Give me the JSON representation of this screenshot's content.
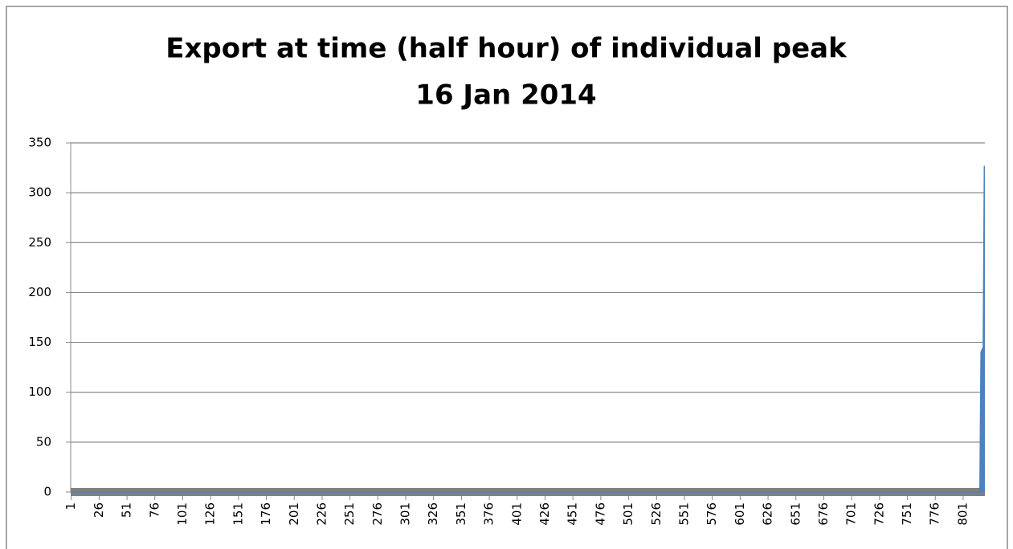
{
  "chart_data": {
    "type": "area",
    "title": "Export at time (half hour) of individual peak",
    "subtitle": "16 Jan 2014",
    "x": [
      1,
      816,
      817,
      818,
      819,
      820
    ],
    "series": [
      {
        "color": "#4f81bd",
        "values": [
          0,
          0,
          140,
          143,
          145,
          327
        ]
      }
    ],
    "xlim": [
      0.5,
      820.5
    ],
    "xticks": [
      1,
      26,
      51,
      76,
      101,
      126,
      151,
      176,
      201,
      226,
      251,
      276,
      301,
      326,
      351,
      376,
      401,
      426,
      451,
      476,
      501,
      526,
      551,
      576,
      601,
      626,
      651,
      676,
      701,
      726,
      751,
      776,
      801
    ],
    "ylim": [
      0,
      350
    ],
    "yticks": [
      0,
      50,
      100,
      150,
      200,
      250,
      300,
      350
    ],
    "grid": true
  }
}
